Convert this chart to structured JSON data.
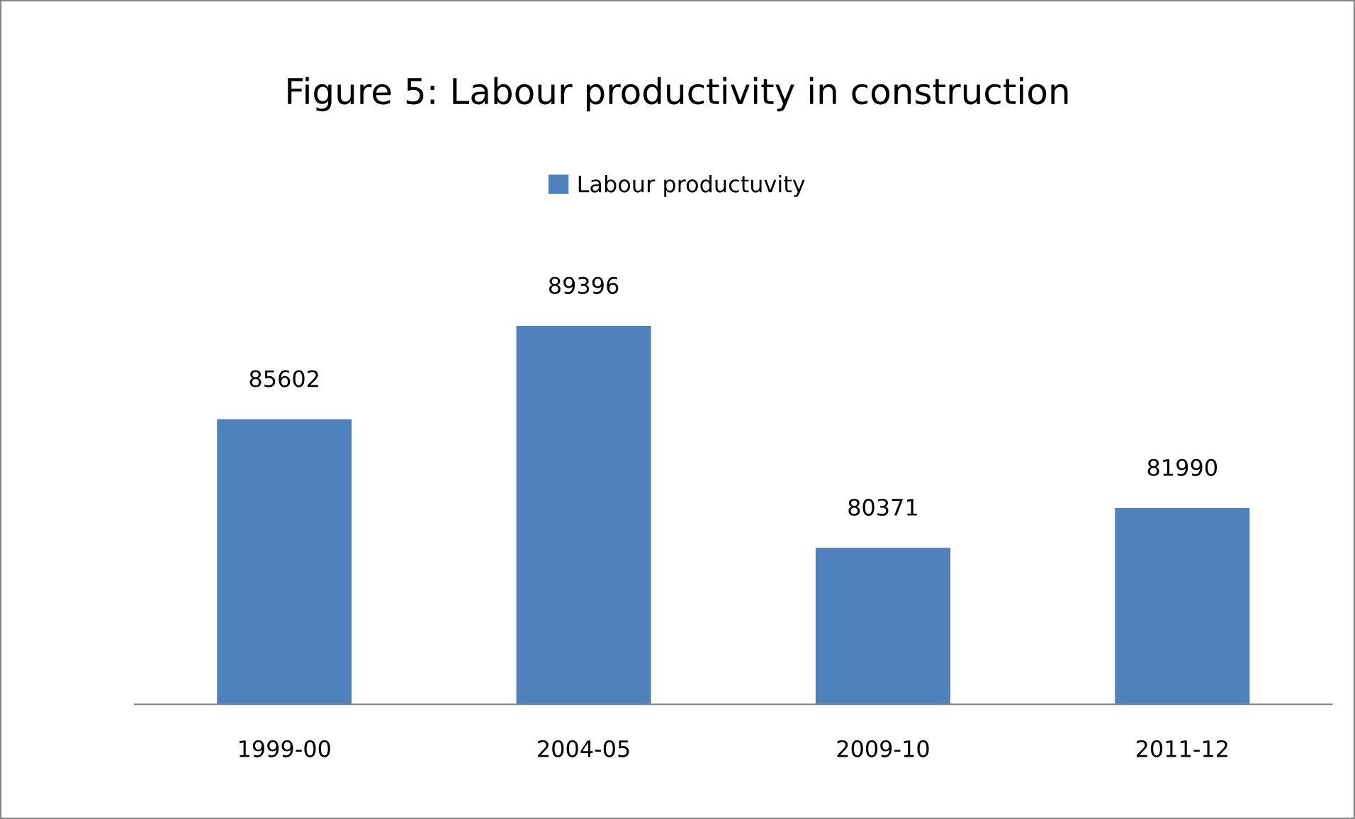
{
  "chart_data": {
    "type": "bar",
    "title": "Figure 5: Labour productivity in construction",
    "categories": [
      "1999-00",
      "2004-05",
      "2009-10",
      "2011-12"
    ],
    "series": [
      {
        "name": "Labour productuvity",
        "color": "#4f81bd",
        "values": [
          85602,
          89396,
          80371,
          81990
        ]
      }
    ],
    "ylim": [
      74000,
      89396
    ],
    "tick_labels": "x",
    "data_labels": true,
    "legend": "top",
    "grid": false
  }
}
